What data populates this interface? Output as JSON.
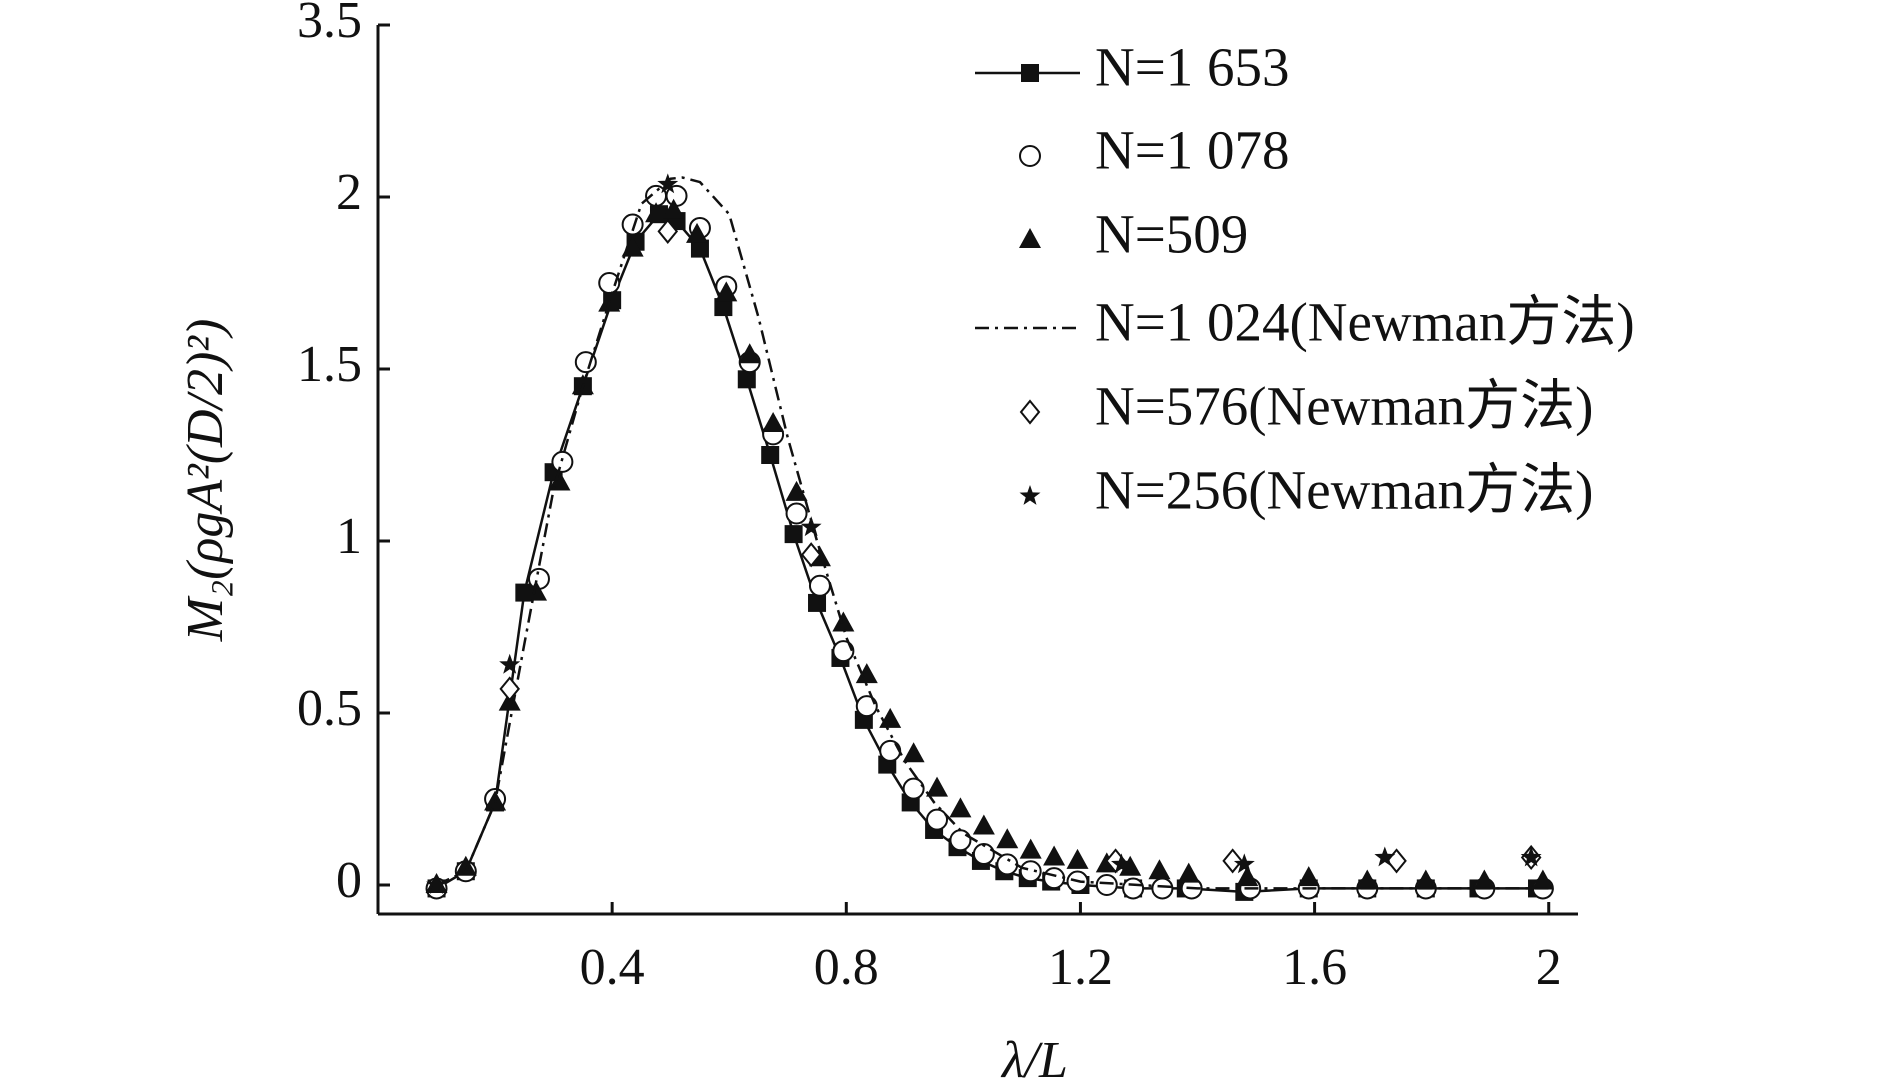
{
  "chart_data": {
    "type": "line",
    "x_label": "λ/L",
    "y_label": "M₂(ρgA²(D/2)²)",
    "xlim": [
      0,
      2.05
    ],
    "ylim": [
      -0.09,
      3.5
    ],
    "xticks": [
      0.4,
      0.8,
      1.2,
      1.6,
      2.0
    ],
    "yticks": [
      0,
      0.5,
      1.0,
      1.5,
      2.0,
      3.5
    ],
    "series": [
      {
        "name": "N=1 653",
        "color": "#111111",
        "marker": "square",
        "line": "solid",
        "x": [
          0.1,
          0.15,
          0.2,
          0.25,
          0.3,
          0.35,
          0.4,
          0.44,
          0.48,
          0.51,
          0.55,
          0.59,
          0.63,
          0.67,
          0.71,
          0.75,
          0.79,
          0.83,
          0.87,
          0.91,
          0.95,
          0.99,
          1.03,
          1.07,
          1.11,
          1.15,
          1.2,
          1.29,
          1.38,
          1.48,
          1.59,
          1.69,
          1.79,
          1.88,
          1.98
        ],
        "values": [
          -0.01,
          0.04,
          0.24,
          0.85,
          1.2,
          1.45,
          1.7,
          1.87,
          1.95,
          1.93,
          1.85,
          1.68,
          1.47,
          1.25,
          1.02,
          0.82,
          0.66,
          0.48,
          0.35,
          0.24,
          0.16,
          0.11,
          0.07,
          0.04,
          0.02,
          0.01,
          0.0,
          -0.01,
          -0.01,
          -0.02,
          -0.01,
          -0.01,
          -0.01,
          -0.01,
          -0.01
        ]
      },
      {
        "name": "N=1 078",
        "color": "#111111",
        "marker": "circle",
        "line": "none",
        "x": [
          0.1,
          0.15,
          0.2,
          0.275,
          0.315,
          0.355,
          0.395,
          0.435,
          0.475,
          0.51,
          0.55,
          0.595,
          0.635,
          0.675,
          0.715,
          0.755,
          0.795,
          0.835,
          0.875,
          0.915,
          0.955,
          0.995,
          1.035,
          1.075,
          1.115,
          1.155,
          1.195,
          1.245,
          1.29,
          1.34,
          1.39,
          1.49,
          1.59,
          1.69,
          1.79,
          1.89,
          1.99
        ],
        "values": [
          -0.01,
          0.04,
          0.25,
          0.89,
          1.23,
          1.52,
          1.75,
          1.92,
          2.01,
          2.01,
          1.91,
          1.74,
          1.52,
          1.31,
          1.08,
          0.87,
          0.68,
          0.52,
          0.39,
          0.28,
          0.19,
          0.13,
          0.09,
          0.06,
          0.04,
          0.02,
          0.01,
          0.0,
          -0.01,
          -0.01,
          -0.01,
          -0.01,
          -0.01,
          -0.01,
          -0.01,
          -0.01,
          -0.01
        ]
      },
      {
        "name": "N=509",
        "color": "#111111",
        "marker": "triangle",
        "line": "none",
        "x": [
          0.1,
          0.15,
          0.2,
          0.225,
          0.27,
          0.31,
          0.35,
          0.395,
          0.435,
          0.475,
          0.505,
          0.545,
          0.595,
          0.635,
          0.675,
          0.715,
          0.755,
          0.795,
          0.835,
          0.875,
          0.915,
          0.955,
          0.995,
          1.035,
          1.075,
          1.115,
          1.155,
          1.195,
          1.245,
          1.285,
          1.335,
          1.385,
          1.485,
          1.59,
          1.69,
          1.79,
          1.89,
          1.99
        ],
        "values": [
          0.0,
          0.05,
          0.24,
          0.53,
          0.85,
          1.17,
          1.45,
          1.69,
          1.85,
          1.95,
          1.96,
          1.89,
          1.72,
          1.54,
          1.34,
          1.14,
          0.95,
          0.76,
          0.61,
          0.48,
          0.38,
          0.28,
          0.22,
          0.17,
          0.13,
          0.1,
          0.08,
          0.07,
          0.06,
          0.05,
          0.04,
          0.03,
          0.02,
          0.02,
          0.01,
          0.01,
          0.01,
          0.01
        ]
      },
      {
        "name": "N=1 024(Newman方法)",
        "color": "#111111",
        "marker": "none",
        "line": "dashdot",
        "x": [
          0.1,
          0.15,
          0.2,
          0.25,
          0.3,
          0.35,
          0.4,
          0.45,
          0.5,
          0.52,
          0.55,
          0.6,
          0.65,
          0.7,
          0.75,
          0.8,
          0.85,
          0.9,
          0.95,
          1.0,
          1.1,
          1.2,
          1.4,
          1.6,
          2.0
        ],
        "values": [
          0,
          0.04,
          0.24,
          0.7,
          1.15,
          1.45,
          1.72,
          1.98,
          2.16,
          2.17,
          2.13,
          1.95,
          1.65,
          1.3,
          1.0,
          0.72,
          0.52,
          0.36,
          0.24,
          0.15,
          0.05,
          0.01,
          -0.01,
          -0.01,
          -0.01
        ]
      },
      {
        "name": "N=576(Newman方法)",
        "color": "#111111",
        "marker": "diamond",
        "line": "none",
        "x": [
          0.225,
          0.495,
          0.74,
          1.26,
          1.46,
          1.74,
          1.97
        ],
        "values": [
          0.57,
          1.9,
          0.96,
          0.07,
          0.07,
          0.07,
          0.08
        ]
      },
      {
        "name": "N=256(Newman方法)",
        "color": "#111111",
        "marker": "star",
        "line": "none",
        "x": [
          0.1,
          0.225,
          0.495,
          0.74,
          1.27,
          1.48,
          1.72,
          1.97
        ],
        "values": [
          0.0,
          0.64,
          2.11,
          1.04,
          0.06,
          0.06,
          0.08,
          0.08
        ]
      }
    ]
  }
}
